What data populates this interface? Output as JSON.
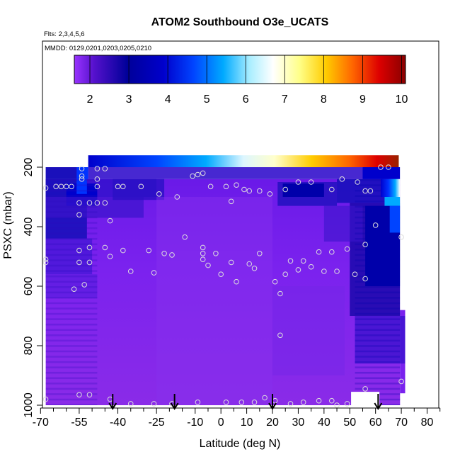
{
  "chart_data": {
    "type": "heatmap",
    "title": "ATOM2 Southbound O3e_UCATS",
    "subtitle_flights": "Flts: 2,3,4,5,6",
    "subtitle_dates": "MMDD: 0129,0201,0203,0205,0210",
    "xlabel": "Latitude (deg N)",
    "ylabel": "PSXC (mbar)",
    "xlim": [
      -70,
      85
    ],
    "ylim": [
      1010,
      120
    ],
    "y_reversed": true,
    "x_ticks": [
      -70,
      -55,
      -40,
      -25,
      -10,
      0,
      10,
      20,
      30,
      40,
      50,
      60,
      70,
      80
    ],
    "x_minor_ticks": [
      -65,
      -60,
      -50,
      -45,
      -35,
      -30,
      -20,
      -15,
      -5,
      5,
      15,
      25,
      35,
      45,
      55,
      65,
      75,
      85
    ],
    "y_ticks": [
      200,
      400,
      600,
      800,
      1000
    ],
    "colorbar": {
      "ticks": [
        2,
        3,
        4,
        5,
        6,
        7,
        8,
        9,
        10
      ],
      "range": [
        1.6,
        10.1
      ],
      "colors": [
        "#9933ff",
        "#6611dd",
        "#0000aa",
        "#0000cc",
        "#0033ff",
        "#00aaff",
        "#66ddff",
        "#ffffff",
        "#ffff66",
        "#ffcc00",
        "#ff8800",
        "#ff2200",
        "#cc0000",
        "#880000"
      ]
    },
    "arrows_lat": [
      -42,
      -18,
      20,
      61
    ],
    "profiles": [
      {
        "lat": -68,
        "p": [
          980,
          520,
          510,
          270
        ]
      },
      {
        "lat": -64,
        "p": [
          265
        ]
      },
      {
        "lat": -62,
        "p": [
          265
        ]
      },
      {
        "lat": -60,
        "p": [
          265
        ]
      },
      {
        "lat": -58,
        "p": [
          265
        ]
      },
      {
        "lat": -57,
        "p": [
          610
        ]
      },
      {
        "lat": -55,
        "p": [
          965,
          520,
          480,
          360,
          320
        ]
      },
      {
        "lat": -54,
        "p": [
          240,
          230,
          205
        ]
      },
      {
        "lat": -53,
        "p": [
          595
        ]
      },
      {
        "lat": -51,
        "p": [
          965,
          520,
          470,
          320
        ]
      },
      {
        "lat": -48,
        "p": [
          320,
          265,
          240,
          205
        ]
      },
      {
        "lat": -45,
        "p": [
          470,
          320,
          205
        ]
      },
      {
        "lat": -43,
        "p": [
          980,
          500,
          380
        ]
      },
      {
        "lat": -40,
        "p": [
          265
        ]
      },
      {
        "lat": -38,
        "p": [
          480,
          265
        ]
      },
      {
        "lat": -35,
        "p": [
          995,
          550
        ]
      },
      {
        "lat": -31,
        "p": [
          265
        ]
      },
      {
        "lat": -28,
        "p": [
          480
        ]
      },
      {
        "lat": -26,
        "p": [
          995,
          555
        ]
      },
      {
        "lat": -24,
        "p": [
          290
        ]
      },
      {
        "lat": -22,
        "p": [
          490
        ]
      },
      {
        "lat": -19,
        "p": [
          995,
          495
        ]
      },
      {
        "lat": -17,
        "p": [
          300
        ]
      },
      {
        "lat": -14,
        "p": [
          435
        ]
      },
      {
        "lat": -11,
        "p": [
          230
        ]
      },
      {
        "lat": -9,
        "p": [
          990,
          225
        ]
      },
      {
        "lat": -7,
        "p": [
          510,
          490,
          470,
          220
        ]
      },
      {
        "lat": -5,
        "p": [
          530
        ]
      },
      {
        "lat": -4,
        "p": [
          265
        ]
      },
      {
        "lat": -2,
        "p": [
          490
        ]
      },
      {
        "lat": 0,
        "p": [
          560
        ]
      },
      {
        "lat": 2,
        "p": [
          990,
          265
        ]
      },
      {
        "lat": 4,
        "p": [
          520,
          315
        ]
      },
      {
        "lat": 6,
        "p": [
          585,
          260
        ]
      },
      {
        "lat": 8,
        "p": [
          990
        ]
      },
      {
        "lat": 9,
        "p": [
          275
        ]
      },
      {
        "lat": 11,
        "p": [
          525,
          280
        ]
      },
      {
        "lat": 13,
        "p": [
          990,
          540
        ]
      },
      {
        "lat": 15,
        "p": [
          490,
          280
        ]
      },
      {
        "lat": 17,
        "p": [
          975
        ]
      },
      {
        "lat": 19,
        "p": [
          290
        ]
      },
      {
        "lat": 21,
        "p": [
          985,
          585
        ]
      },
      {
        "lat": 23,
        "p": [
          765,
          625
        ]
      },
      {
        "lat": 25,
        "p": [
          560,
          275
        ]
      },
      {
        "lat": 27,
        "p": [
          995,
          515
        ]
      },
      {
        "lat": 30,
        "p": [
          545,
          250
        ]
      },
      {
        "lat": 32,
        "p": [
          990,
          515
        ]
      },
      {
        "lat": 35,
        "p": [
          535,
          250
        ]
      },
      {
        "lat": 38,
        "p": [
          985,
          485
        ]
      },
      {
        "lat": 40,
        "p": [
          550
        ]
      },
      {
        "lat": 43,
        "p": [
          985,
          485,
          275
        ]
      },
      {
        "lat": 45,
        "p": [
          1000,
          550
        ]
      },
      {
        "lat": 47,
        "p": [
          240
        ]
      },
      {
        "lat": 49,
        "p": [
          995,
          475
        ]
      },
      {
        "lat": 52,
        "p": [
          560
        ]
      },
      {
        "lat": 53,
        "p": [
          250
        ]
      },
      {
        "lat": 56,
        "p": [
          945,
          575,
          460,
          280
        ]
      },
      {
        "lat": 58,
        "p": [
          280
        ]
      },
      {
        "lat": 60,
        "p": [
          395
        ]
      },
      {
        "lat": 62,
        "p": [
          200
        ]
      },
      {
        "lat": 65,
        "p": [
          200
        ]
      },
      {
        "lat": 70,
        "p": [
          920,
          435
        ]
      }
    ]
  }
}
